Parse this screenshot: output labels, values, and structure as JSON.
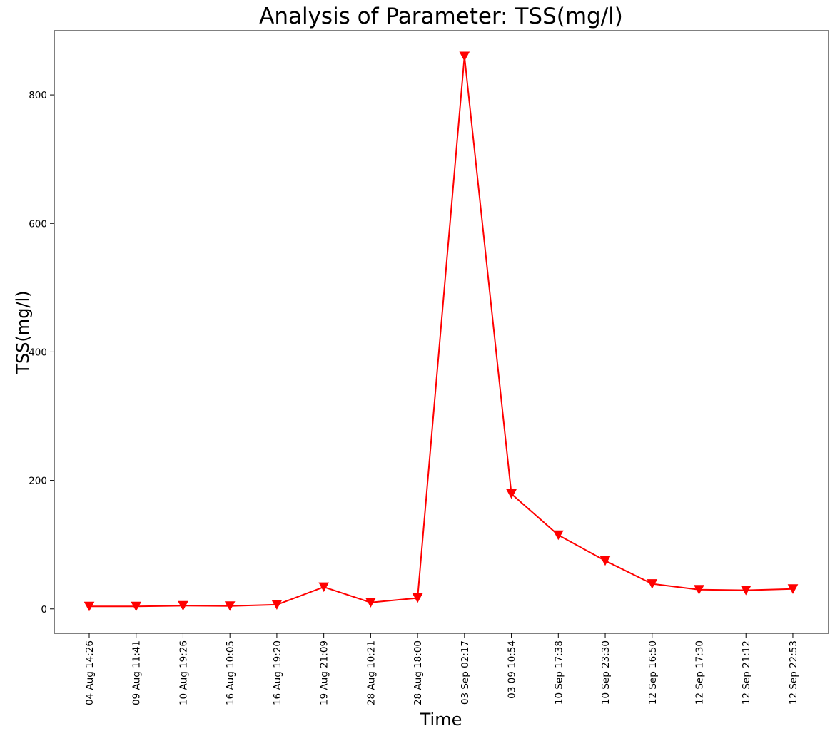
{
  "chart_data": {
    "type": "line",
    "title": "Analysis of Parameter: TSS(mg/l)",
    "xlabel": "Time",
    "ylabel": "TSS(mg/l)",
    "ylim": [
      -38,
      900
    ],
    "y_ticks": [
      0,
      200,
      400,
      600,
      800
    ],
    "grid": false,
    "categories": [
      "04 Aug 14:26",
      "09 Aug 11:41",
      "10 Aug 19:26",
      "16 Aug 10:05",
      "16 Aug 19:20",
      "19 Aug 21:09",
      "28 Aug 10:21",
      "28 Aug 18:00",
      "03 Sep 02:17",
      "03 09 10:54",
      "10 Sep 17:38",
      "10 Sep 23:30",
      "12 Sep 16:50",
      "12 Sep 17:30",
      "12 Sep 21:12",
      "12 Sep 22:53"
    ],
    "series": [
      {
        "values": [
          4,
          4,
          5,
          4.5,
          6.5,
          34,
          10,
          17,
          860,
          179,
          115,
          75,
          39,
          30,
          29,
          31
        ],
        "color": "#ff0000",
        "marker": "triangle-down"
      }
    ]
  }
}
